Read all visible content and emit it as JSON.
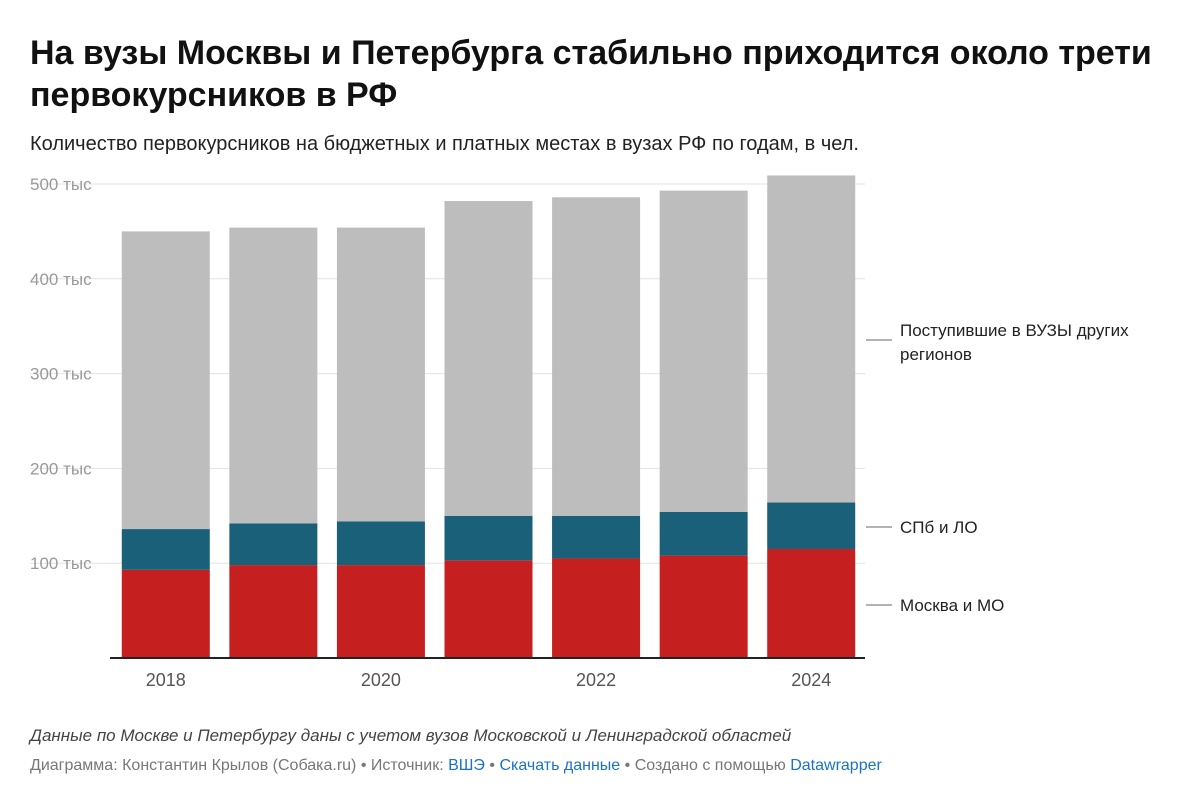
{
  "title": "На вузы Москвы и Петербурга стабильно приходится около трети первокурсников в РФ",
  "subtitle": "Количество первокурсников на бюджетных и платных местах в вузах РФ по годам, в чел.",
  "notes": "Данные по Москве и Петербургу даны с учетом вузов Московской и Ленинградской областей",
  "byline": {
    "author_label": "Диаграмма: Константин Крылов (Собака.ru)",
    "separator": " • ",
    "source_label": "Источник: ",
    "source_link": "ВШЭ",
    "download_link": "Скачать данные",
    "created_label": "Создано с помощью ",
    "tool_link": "Datawrapper"
  },
  "colors": {
    "moscow": "#c61f1f",
    "spb": "#1a6078",
    "other": "#bdbdbd",
    "grid": "#e3e3e3",
    "axis": "#222222",
    "tick": "#999999",
    "year": "#555555"
  },
  "chart_data": {
    "type": "bar",
    "stacked": true,
    "categories": [
      "2018",
      "2019",
      "2020",
      "2021",
      "2022",
      "2023",
      "2024"
    ],
    "x_tick_labels": [
      "2018",
      "",
      "2020",
      "",
      "2022",
      "",
      "2024"
    ],
    "series": [
      {
        "name": "Москва и МО",
        "color_key": "moscow",
        "values": [
          93000,
          98000,
          98000,
          103000,
          105000,
          108000,
          115000
        ]
      },
      {
        "name": "СПб и ЛО",
        "color_key": "spb",
        "values": [
          43000,
          44000,
          46000,
          47000,
          45000,
          46000,
          49000
        ]
      },
      {
        "name": "Поступившие в ВУЗЫ других регионов",
        "color_key": "other",
        "values": [
          314000,
          312000,
          310000,
          332000,
          336000,
          339000,
          345000
        ]
      }
    ],
    "ylim": [
      0,
      500000
    ],
    "y_ticks": [
      100000,
      200000,
      300000,
      400000,
      500000
    ],
    "y_tick_labels": [
      "100 тыс",
      "200 тыс",
      "300 тыс",
      "400 тыс",
      "500 тыс"
    ],
    "xlabel": "",
    "ylabel": "",
    "grid": true,
    "legend": "direct labels right"
  }
}
